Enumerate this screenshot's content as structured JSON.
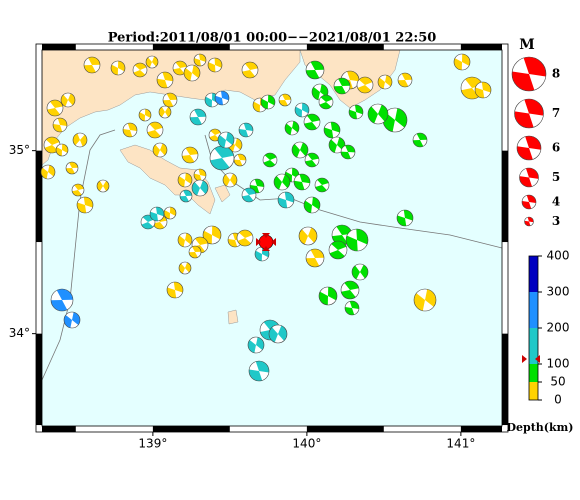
{
  "title": "Period:2011/08/01 00:00−−2021/08/01 22:50",
  "map": {
    "lon_ticks": [
      {
        "value": 139,
        "label": "139°"
      },
      {
        "value": 140,
        "label": "140°"
      },
      {
        "value": 141,
        "label": "141°"
      }
    ],
    "lat_ticks": [
      {
        "value": 35,
        "label": "35°"
      },
      {
        "value": 34,
        "label": "34°"
      }
    ]
  },
  "magnitude_legend": {
    "title": "M",
    "values": [
      8,
      7,
      6,
      5,
      4,
      3
    ]
  },
  "depth_scale": {
    "ticks": [
      400,
      300,
      200,
      100,
      50,
      0
    ],
    "label": "Depth(km)"
  }
}
